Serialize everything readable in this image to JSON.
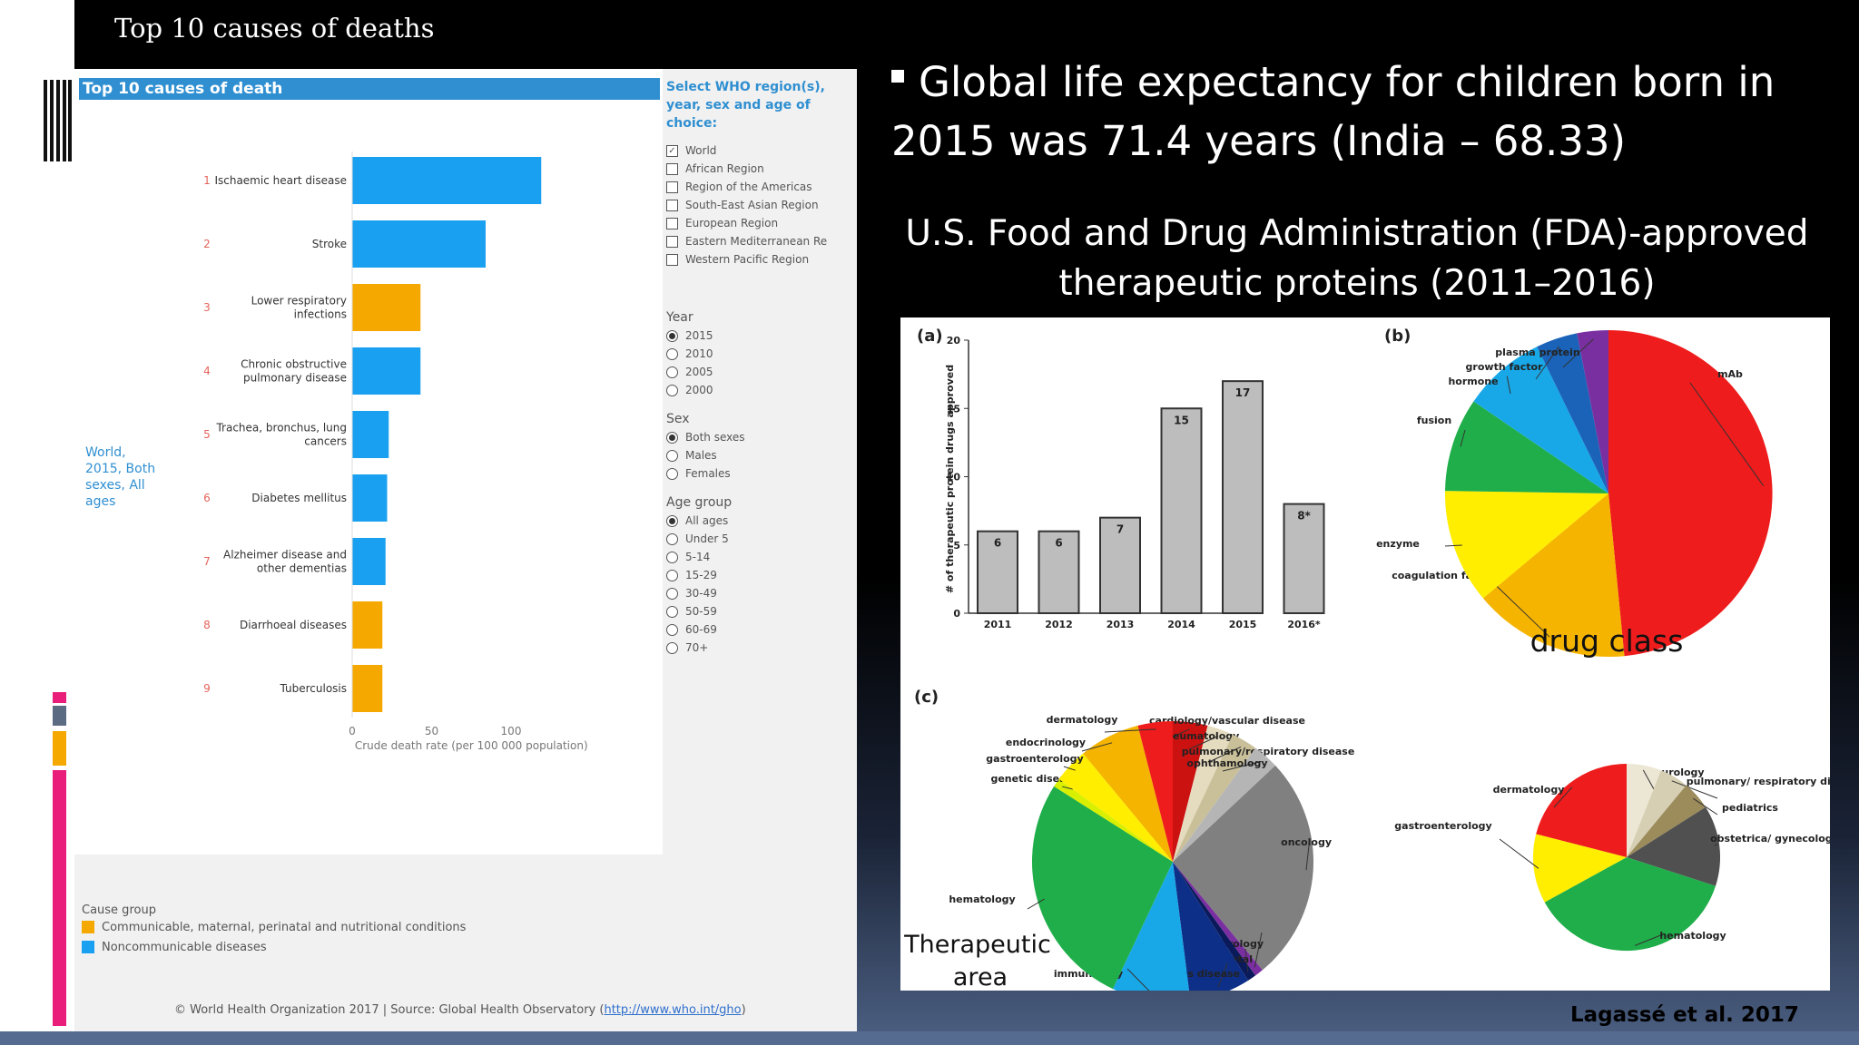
{
  "slide": {
    "title": "Top 10 causes of deaths",
    "bullet": "Global life expectancy for children born in 2015 was 71.4 years  (India – 68.33)",
    "fda_title_line1": "U.S. Food and Drug Administration (FDA)-approved",
    "fda_title_line2": "therapeutic proteins (2011–2016)",
    "citation": "Lagassé  et al. 2017",
    "deco_colors": [
      "#e91e7b",
      "#5a6b82",
      "#f5a800",
      "#e91e7b"
    ]
  },
  "who_panel": {
    "header": "Top 10 causes of death",
    "world_label": [
      "World,",
      "2015, Both",
      "sexes, All",
      "ages"
    ],
    "select_heading": [
      "Select WHO region(s),",
      "year, sex and age of",
      "choice:"
    ],
    "regions": [
      {
        "label": "World",
        "checked": true
      },
      {
        "label": "African Region",
        "checked": false
      },
      {
        "label": "Region of the Americas",
        "checked": false
      },
      {
        "label": "South-East Asian Region",
        "checked": false
      },
      {
        "label": "European Region",
        "checked": false
      },
      {
        "label": "Eastern Mediterranean Re",
        "checked": false
      },
      {
        "label": "Western Pacific Region",
        "checked": false
      }
    ],
    "year_heading": "Year",
    "years": [
      {
        "label": "2015",
        "on": true
      },
      {
        "label": "2010",
        "on": false
      },
      {
        "label": "2005",
        "on": false
      },
      {
        "label": "2000",
        "on": false
      }
    ],
    "sex_heading": "Sex",
    "sexes": [
      {
        "label": "Both sexes",
        "on": true
      },
      {
        "label": "Males",
        "on": false
      },
      {
        "label": "Females",
        "on": false
      }
    ],
    "age_heading": "Age group",
    "ages": [
      {
        "label": "All ages",
        "on": true
      },
      {
        "label": "Under 5",
        "on": false
      },
      {
        "label": "5-14",
        "on": false
      },
      {
        "label": "15-29",
        "on": false
      },
      {
        "label": "30-49",
        "on": false
      },
      {
        "label": "50-59",
        "on": false
      },
      {
        "label": "60-69",
        "on": false
      },
      {
        "label": "70+",
        "on": false
      }
    ],
    "legend_heading": "Cause group",
    "legend": [
      {
        "label": "Communicable, maternal, perinatal and nutritional conditions",
        "color": "#f5a800"
      },
      {
        "label": "Noncommunicable diseases",
        "color": "#1aa0f0"
      }
    ],
    "footer_text": "© World Health Organization 2017 | Source: Global Health Observatory (",
    "footer_link": "http://www.who.int/gho",
    "footer_end": ")"
  },
  "chart_data": [
    {
      "type": "bar",
      "orientation": "horizontal",
      "title": "Top 10 causes of death",
      "categories": [
        "Ischaemic heart disease",
        "Stroke",
        "Lower respiratory infections",
        "Chronic obstructive pulmonary disease",
        "Trachea, bronchus, lung cancers",
        "Diabetes mellitus",
        "Alzheimer disease and other dementias",
        "Diarrhoeal diseases",
        "Tuberculosis"
      ],
      "category_lines": [
        [
          "Ischaemic heart disease"
        ],
        [
          "Stroke"
        ],
        [
          "Lower respiratory",
          "infections"
        ],
        [
          "Chronic obstructive",
          "pulmonary disease"
        ],
        [
          "Trachea, bronchus, lung",
          "cancers"
        ],
        [
          "Diabetes mellitus"
        ],
        [
          "Alzheimer disease and",
          "other dementias"
        ],
        [
          "Diarrhoeal diseases"
        ],
        [
          "Tuberculosis"
        ]
      ],
      "ranks": [
        "1",
        "2",
        "3",
        "4",
        "5",
        "6",
        "7",
        "8",
        "9"
      ],
      "values": [
        119,
        84,
        43,
        43,
        23,
        22,
        21,
        19,
        19
      ],
      "groups": [
        "Noncommunicable diseases",
        "Noncommunicable diseases",
        "Communicable, maternal, perinatal and nutritional conditions",
        "Noncommunicable diseases",
        "Noncommunicable diseases",
        "Noncommunicable diseases",
        "Noncommunicable diseases",
        "Communicable, maternal, perinatal and nutritional conditions",
        "Communicable, maternal, perinatal and nutritional conditions"
      ],
      "group_colors": {
        "Noncommunicable diseases": "#1aa0f0",
        "Communicable, maternal, perinatal and nutritional conditions": "#f5a800"
      },
      "xlabel": "Crude death rate (per 100 000 population)",
      "xticks": [
        "0",
        "50",
        "100"
      ],
      "xlim": [
        0,
        140
      ]
    },
    {
      "type": "bar",
      "panel_label": "(a)",
      "categories": [
        "2011",
        "2012",
        "2013",
        "2014",
        "2015",
        "2016*"
      ],
      "values": [
        6,
        6,
        7,
        15,
        17,
        8
      ],
      "value_labels": [
        "6",
        "6",
        "7",
        "15",
        "17",
        "8*"
      ],
      "ylabel": "# of therapeutic protein drugs approved",
      "yticks": [
        "0",
        "5",
        "10",
        "15",
        "20"
      ],
      "ylim": [
        0,
        20
      ],
      "color": "#bdbdbd"
    },
    {
      "type": "pie",
      "panel_label": "(b)",
      "caption": "drug class",
      "slices": [
        {
          "label": "mAb",
          "value": 47,
          "color": "#ee1c1c"
        },
        {
          "label": "coagulation factor",
          "value": 15,
          "color": "#f5b400"
        },
        {
          "label": "enzyme",
          "value": 11,
          "color": "#ffee00"
        },
        {
          "label": "fusion",
          "value": 9,
          "color": "#1fae4a"
        },
        {
          "label": "hormone",
          "value": 8,
          "color": "#18a8e8"
        },
        {
          "label": "growth factor",
          "value": 4,
          "color": "#1b63b8"
        },
        {
          "label": "plasma protein",
          "value": 3,
          "color": "#7a2fa0"
        }
      ]
    },
    {
      "type": "pie",
      "panel_label": "(c)",
      "caption": [
        "Therapeutic",
        "area"
      ],
      "slices": [
        {
          "label": "cardiology/vascular disease",
          "value": 4,
          "color": "#cc1111"
        },
        {
          "label": "rheumatology",
          "value": 3,
          "color": "#e5dcc0"
        },
        {
          "label": "pulmonary/respiratory disease",
          "value": 3,
          "color": "#c9c09a"
        },
        {
          "label": "ophthamology",
          "value": 3,
          "color": "#b5b5b5"
        },
        {
          "label": "oncology",
          "value": 26,
          "color": "#808080"
        },
        {
          "label": "nephrology",
          "value": 1,
          "color": "#7a2fa0"
        },
        {
          "label": "musculoskeletal",
          "value": 1,
          "color": "#0a1a5a"
        },
        {
          "label": "infectious disease",
          "value": 7,
          "color": "#0e2f87"
        },
        {
          "label": "immunology",
          "value": 9,
          "color": "#18a8e8"
        },
        {
          "label": "hematology",
          "value": 27,
          "color": "#1fae4a"
        },
        {
          "label": "genetic disease",
          "value": 1,
          "color": "#d9ef00"
        },
        {
          "label": "gastroenterology",
          "value": 4,
          "color": "#ffee00"
        },
        {
          "label": "endocrinology",
          "value": 7,
          "color": "#f5b400"
        },
        {
          "label": "dermatology",
          "value": 4,
          "color": "#ee1c1c"
        }
      ]
    },
    {
      "type": "pie",
      "panel_label": "",
      "slices": [
        {
          "label": "urology",
          "value": 6,
          "color": "#ece6d4"
        },
        {
          "label": "pulmonary/ respiratory disease",
          "value": 5,
          "color": "#d6cfb3"
        },
        {
          "label": "pediatrics",
          "value": 5,
          "color": "#9c8c5c"
        },
        {
          "label": "obstetrica/ gynecology",
          "value": 14,
          "color": "#505050"
        },
        {
          "label": "hematology",
          "value": 37,
          "color": "#1fae4a"
        },
        {
          "label": "gastroenterology",
          "value": 12,
          "color": "#ffee00"
        },
        {
          "label": "dermatology",
          "value": 21,
          "color": "#ee1c1c"
        }
      ]
    }
  ]
}
